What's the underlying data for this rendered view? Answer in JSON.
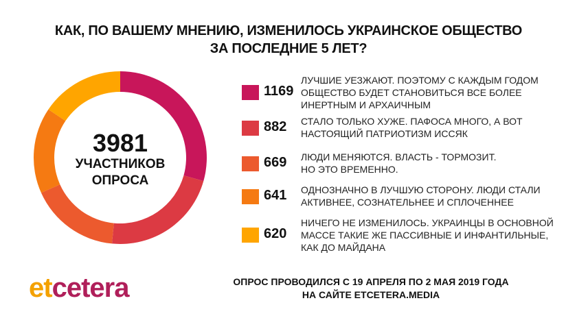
{
  "title_lines": [
    "КАК, ПО ВАШЕМУ МНЕНИЮ, ИЗМЕНИЛОСЬ УКРАИНСКОЕ ОБЩЕСТВО",
    "ЗА ПОСЛЕДНИЕ 5 ЛЕТ?"
  ],
  "center": {
    "total": "3981",
    "label_lines": [
      "УЧАСТНИКОВ",
      "ОПРОСА"
    ]
  },
  "chart_data": {
    "type": "pie",
    "title": "КАК, ПО ВАШЕМУ МНЕНИЮ, ИЗМЕНИЛОСЬ УКРАИНСКОЕ ОБЩЕСТВО ЗА ПОСЛЕДНИЕ 5 ЛЕТ?",
    "total": 3981,
    "slices": [
      {
        "value": 1169,
        "label_lines": [
          "ЛУЧШИЕ УЕЗЖАЮТ. ПОЭТОМУ С КАЖДЫМ ГОДОМ",
          "ОБЩЕСТВО БУДЕТ СТАНОВИТЬСЯ ВСЕ БОЛЕЕ",
          "ИНЕРТНЫМ И АРХАИЧНЫМ"
        ],
        "color": "#c8165a"
      },
      {
        "value": 882,
        "label_lines": [
          "СТАЛО ТОЛЬКО ХУЖЕ. ПАФОСА МНОГО, А ВОТ",
          "НАСТОЯЩИЙ ПАТРИОТИЗМ ИССЯК"
        ],
        "color": "#dc3a43"
      },
      {
        "value": 669,
        "label_lines": [
          "ЛЮДИ МЕНЯЮТСЯ. ВЛАСТЬ - ТОРМОЗИТ.",
          "НО ЭТО ВРЕМЕННО."
        ],
        "color": "#ec5a2e"
      },
      {
        "value": 641,
        "label_lines": [
          "ОДНОЗНАЧНО В ЛУЧШУЮ СТОРОНУ. ЛЮДИ СТАЛИ",
          "АКТИВНЕЕ, СОЗНАТЕЛЬНЕЕ И СПЛОЧЕННЕЕ"
        ],
        "color": "#f57a12"
      },
      {
        "value": 620,
        "label_lines": [
          "НИЧЕГО НЕ ИЗМЕНИЛОСЬ. УКРАИНЦЫ В ОСНОВНОЙ",
          "МАССЕ ТАКИЕ ЖЕ ПАССИВНЫЕ И ИНФАНТИЛЬНЫЕ,",
          "КАК ДО МАЙДАНА"
        ],
        "color": "#ffa500"
      }
    ]
  },
  "logo": {
    "part1": "et",
    "part2": "cetera"
  },
  "footer_lines": [
    "ОПРОС ПРОВОДИЛСЯ С 19 АПРЕЛЯ ПО 2 МАЯ 2019 ГОДА",
    "НА САЙТЕ ETCETERA.MEDIA"
  ]
}
